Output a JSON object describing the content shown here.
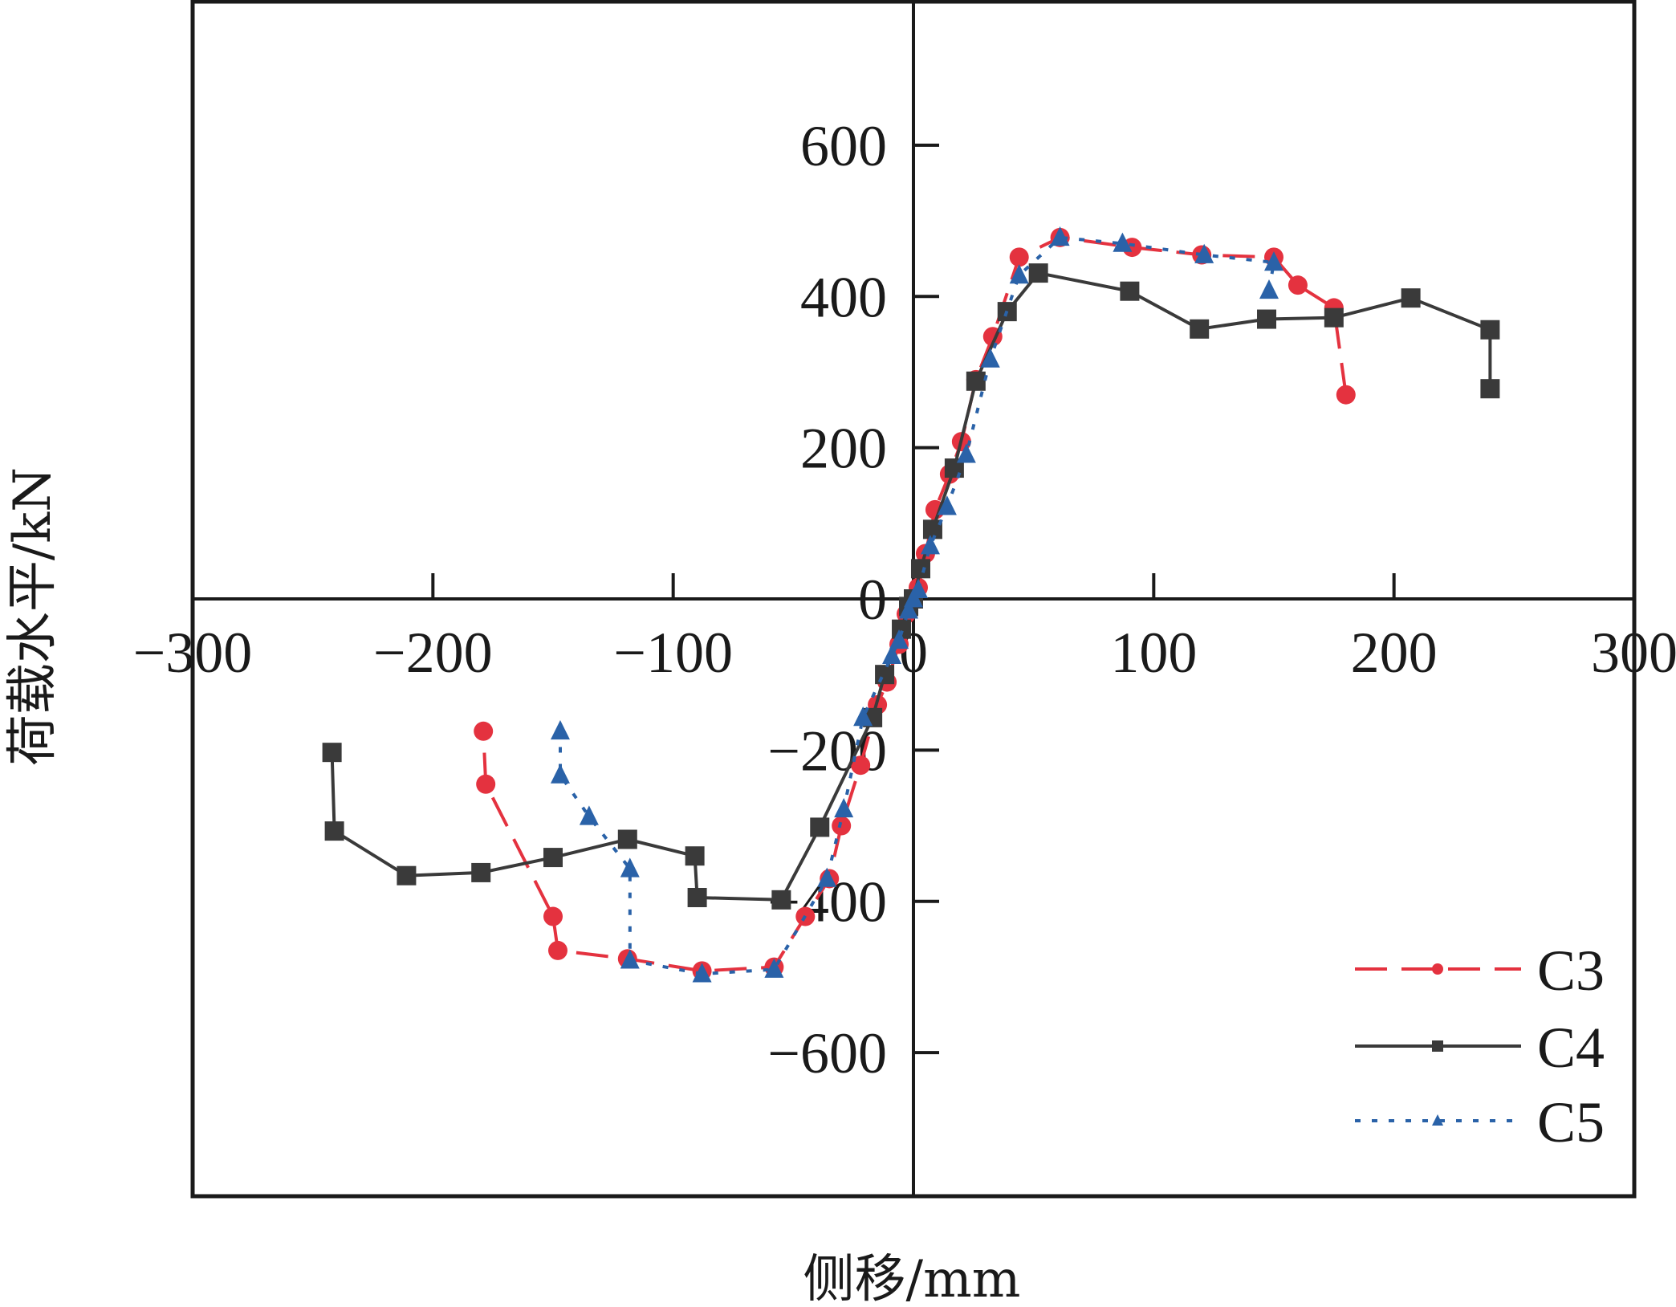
{
  "chart_data": {
    "type": "line",
    "title": "",
    "xlabel": "侧移/mm",
    "ylabel": "荷载水平/kN",
    "xlim": [
      -300,
      300
    ],
    "ylim": [
      -790,
      790
    ],
    "xticks": [
      -300,
      -200,
      -100,
      0,
      100,
      200,
      300
    ],
    "xtick_labels": [
      "−300",
      "−200",
      "−100",
      "0",
      "100",
      "200",
      "300"
    ],
    "yticks": [
      -600,
      -400,
      -200,
      0,
      200,
      400,
      600
    ],
    "ytick_labels": [
      "−600",
      "−400",
      "−200",
      "0",
      "200",
      "400",
      "600"
    ],
    "legend_position": "bottom-right",
    "grid": false,
    "series": [
      {
        "name": "C3",
        "color": "#e4323f",
        "line_style": "dashed",
        "marker": "circle",
        "points": [
          [
            180,
            270
          ],
          [
            175,
            385
          ],
          [
            160,
            415
          ],
          [
            150,
            452
          ],
          [
            120,
            455
          ],
          [
            91,
            465
          ],
          [
            61,
            478
          ],
          [
            44,
            452
          ],
          [
            33,
            347
          ],
          [
            26,
            290
          ],
          [
            20,
            208
          ],
          [
            15,
            165
          ],
          [
            9,
            118
          ],
          [
            5,
            60
          ],
          [
            2,
            15
          ],
          [
            0,
            0
          ],
          [
            -3,
            -20
          ],
          [
            -6,
            -60
          ],
          [
            -11,
            -110
          ],
          [
            -15,
            -140
          ],
          [
            -22,
            -220
          ],
          [
            -30,
            -300
          ],
          [
            -35,
            -370
          ],
          [
            -45,
            -420
          ],
          [
            -58,
            -487
          ],
          [
            -88,
            -492
          ],
          [
            -119,
            -476
          ],
          [
            -148,
            -465
          ],
          [
            -150,
            -420
          ],
          [
            -178,
            -245
          ],
          [
            -179,
            -175
          ]
        ]
      },
      {
        "name": "C4",
        "color": "#3a3a3a",
        "line_style": "solid",
        "marker": "square",
        "points": [
          [
            240,
            278
          ],
          [
            240,
            356
          ],
          [
            207,
            398
          ],
          [
            175,
            372
          ],
          [
            147,
            370
          ],
          [
            119,
            357
          ],
          [
            90,
            407
          ],
          [
            52,
            431
          ],
          [
            39,
            380
          ],
          [
            26,
            288
          ],
          [
            17,
            173
          ],
          [
            8,
            92
          ],
          [
            3,
            40
          ],
          [
            0,
            0
          ],
          [
            -2,
            -10
          ],
          [
            -5,
            -40
          ],
          [
            -12,
            -100
          ],
          [
            -17,
            -157
          ],
          [
            -39,
            -302
          ],
          [
            -55,
            -398
          ],
          [
            -90,
            -395
          ],
          [
            -91,
            -340
          ],
          [
            -119,
            -318
          ],
          [
            -150,
            -342
          ],
          [
            -180,
            -362
          ],
          [
            -211,
            -366
          ],
          [
            -241,
            -307
          ],
          [
            -242,
            -203
          ]
        ]
      },
      {
        "name": "C5",
        "color": "#2a62a8",
        "line_style": "dotted",
        "marker": "triangle",
        "points": [
          [
            148,
            408
          ],
          [
            150,
            445
          ],
          [
            121,
            455
          ],
          [
            87,
            470
          ],
          [
            61,
            478
          ],
          [
            44,
            428
          ],
          [
            32,
            317
          ],
          [
            22,
            191
          ],
          [
            14,
            122
          ],
          [
            7,
            70
          ],
          [
            2,
            12
          ],
          [
            0,
            0
          ],
          [
            -2,
            -15
          ],
          [
            -6,
            -55
          ],
          [
            -9,
            -75
          ],
          [
            -21,
            -157
          ],
          [
            -29,
            -278
          ],
          [
            -36,
            -370
          ],
          [
            -58,
            -490
          ],
          [
            -88,
            -496
          ],
          [
            -118,
            -478
          ],
          [
            -118,
            -357
          ],
          [
            -135,
            -288
          ],
          [
            -147,
            -233
          ],
          [
            -147,
            -175
          ]
        ]
      }
    ]
  }
}
